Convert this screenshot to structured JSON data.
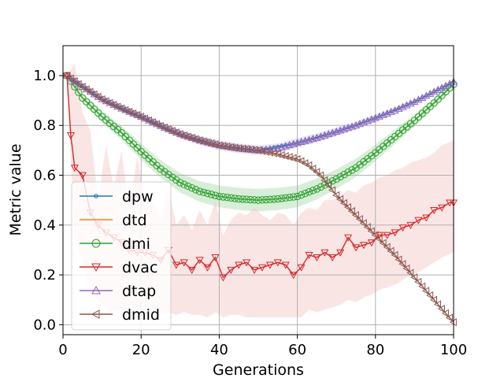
{
  "chart_data": {
    "type": "line",
    "title": "",
    "xlabel": "Generations",
    "ylabel": "Metric value",
    "xlim": [
      0,
      100
    ],
    "ylim": [
      -0.04,
      1.12
    ],
    "xticks": [
      0,
      20,
      40,
      60,
      80,
      100
    ],
    "yticks": [
      0.0,
      0.2,
      0.4,
      0.6,
      0.8,
      1.0
    ],
    "xtick_labels": [
      "0",
      "20",
      "40",
      "60",
      "80",
      "100"
    ],
    "ytick_labels": [
      "0.0",
      "0.2",
      "0.4",
      "0.6",
      "0.8",
      "1.0"
    ],
    "grid": true,
    "legend_position": "lower-left",
    "series": [
      {
        "name": "dpw",
        "color": "#1f77b4",
        "marker": "dot",
        "points": [
          [
            1,
            1.0
          ],
          [
            10,
            0.905
          ],
          [
            20,
            0.835
          ],
          [
            30,
            0.765
          ],
          [
            40,
            0.72
          ],
          [
            50,
            0.7
          ],
          [
            60,
            0.73
          ],
          [
            70,
            0.775
          ],
          [
            80,
            0.83
          ],
          [
            90,
            0.895
          ],
          [
            100,
            0.975
          ]
        ]
      },
      {
        "name": "dtd",
        "color": "#ff7f0e",
        "marker": "none",
        "points": [
          [
            1,
            1.0
          ],
          [
            10,
            0.905
          ],
          [
            20,
            0.835
          ],
          [
            30,
            0.765
          ],
          [
            40,
            0.72
          ],
          [
            50,
            0.7
          ],
          [
            60,
            0.73
          ],
          [
            70,
            0.775
          ],
          [
            80,
            0.83
          ],
          [
            90,
            0.895
          ],
          [
            100,
            0.975
          ]
        ]
      },
      {
        "name": "dmi",
        "color": "#2ca02c",
        "marker": "circle",
        "band": [
          0.03,
          0.015
        ],
        "points": [
          [
            1,
            1.0
          ],
          [
            5,
            0.91
          ],
          [
            10,
            0.835
          ],
          [
            15,
            0.77
          ],
          [
            20,
            0.695
          ],
          [
            25,
            0.625
          ],
          [
            30,
            0.57
          ],
          [
            35,
            0.535
          ],
          [
            40,
            0.515
          ],
          [
            45,
            0.505
          ],
          [
            50,
            0.5
          ],
          [
            55,
            0.505
          ],
          [
            60,
            0.515
          ],
          [
            65,
            0.545
          ],
          [
            70,
            0.585
          ],
          [
            75,
            0.63
          ],
          [
            80,
            0.69
          ],
          [
            85,
            0.755
          ],
          [
            90,
            0.82
          ],
          [
            95,
            0.89
          ],
          [
            100,
            0.965
          ]
        ]
      },
      {
        "name": "dvac",
        "color": "#d62728",
        "marker": "triangle-down",
        "band_color": "#f4c6c6",
        "points": [
          [
            1,
            1.0
          ],
          [
            2,
            0.76
          ],
          [
            3,
            0.63
          ],
          [
            5,
            0.6
          ],
          [
            7,
            0.45
          ],
          [
            9,
            0.4
          ],
          [
            11,
            0.37
          ],
          [
            13,
            0.35
          ],
          [
            15,
            0.33
          ],
          [
            17,
            0.3
          ],
          [
            19,
            0.29
          ],
          [
            21,
            0.29
          ],
          [
            23,
            0.28
          ],
          [
            25,
            0.26
          ],
          [
            27,
            0.3
          ],
          [
            29,
            0.24
          ],
          [
            31,
            0.25
          ],
          [
            33,
            0.22
          ],
          [
            35,
            0.26
          ],
          [
            37,
            0.23
          ],
          [
            39,
            0.27
          ],
          [
            41,
            0.19
          ],
          [
            43,
            0.22
          ],
          [
            45,
            0.24
          ],
          [
            47,
            0.25
          ],
          [
            49,
            0.22
          ],
          [
            51,
            0.23
          ],
          [
            53,
            0.24
          ],
          [
            55,
            0.25
          ],
          [
            57,
            0.24
          ],
          [
            59,
            0.2
          ],
          [
            61,
            0.23
          ],
          [
            63,
            0.28
          ],
          [
            65,
            0.27
          ],
          [
            67,
            0.29
          ],
          [
            69,
            0.27
          ],
          [
            71,
            0.29
          ],
          [
            73,
            0.35
          ],
          [
            75,
            0.31
          ],
          [
            77,
            0.32
          ],
          [
            79,
            0.33
          ],
          [
            81,
            0.36
          ],
          [
            83,
            0.36
          ],
          [
            85,
            0.37
          ],
          [
            87,
            0.39
          ],
          [
            89,
            0.4
          ],
          [
            91,
            0.42
          ],
          [
            93,
            0.43
          ],
          [
            95,
            0.46
          ],
          [
            97,
            0.47
          ],
          [
            99,
            0.49
          ],
          [
            100,
            0.49
          ]
        ],
        "band_upper": [
          [
            1,
            1.0
          ],
          [
            3,
            1.05
          ],
          [
            5,
            0.85
          ],
          [
            7,
            0.78
          ],
          [
            9,
            0.5
          ],
          [
            11,
            0.72
          ],
          [
            13,
            0.55
          ],
          [
            15,
            0.7
          ],
          [
            17,
            0.45
          ],
          [
            19,
            0.68
          ],
          [
            21,
            0.48
          ],
          [
            23,
            0.5
          ],
          [
            25,
            0.42
          ],
          [
            27,
            0.55
          ],
          [
            29,
            0.4
          ],
          [
            31,
            0.44
          ],
          [
            33,
            0.38
          ],
          [
            35,
            0.46
          ],
          [
            37,
            0.4
          ],
          [
            39,
            0.5
          ],
          [
            41,
            0.36
          ],
          [
            43,
            0.42
          ],
          [
            45,
            0.45
          ],
          [
            47,
            0.44
          ],
          [
            49,
            0.47
          ],
          [
            51,
            0.44
          ],
          [
            53,
            0.42
          ],
          [
            55,
            0.45
          ],
          [
            57,
            0.44
          ],
          [
            59,
            0.4
          ],
          [
            61,
            0.45
          ],
          [
            63,
            0.47
          ],
          [
            65,
            0.46
          ],
          [
            67,
            0.5
          ],
          [
            69,
            0.5
          ],
          [
            71,
            0.52
          ],
          [
            73,
            0.54
          ],
          [
            75,
            0.53
          ],
          [
            77,
            0.56
          ],
          [
            79,
            0.57
          ],
          [
            81,
            0.59
          ],
          [
            83,
            0.6
          ],
          [
            85,
            0.62
          ],
          [
            87,
            0.63
          ],
          [
            89,
            0.65
          ],
          [
            91,
            0.66
          ],
          [
            93,
            0.67
          ],
          [
            95,
            0.69
          ],
          [
            97,
            0.72
          ],
          [
            100,
            0.74
          ]
        ],
        "band_lower": [
          [
            1,
            1.0
          ],
          [
            3,
            0.35
          ],
          [
            5,
            0.25
          ],
          [
            7,
            0.15
          ],
          [
            9,
            0.1
          ],
          [
            11,
            0.06
          ],
          [
            13,
            0.05
          ],
          [
            15,
            0.06
          ],
          [
            17,
            0.05
          ],
          [
            19,
            0.04
          ],
          [
            21,
            0.05
          ],
          [
            23,
            0.04
          ],
          [
            25,
            0.04
          ],
          [
            27,
            0.05
          ],
          [
            29,
            0.04
          ],
          [
            31,
            0.05
          ],
          [
            33,
            0.04
          ],
          [
            35,
            0.04
          ],
          [
            37,
            0.03
          ],
          [
            39,
            0.05
          ],
          [
            41,
            0.03
          ],
          [
            43,
            0.04
          ],
          [
            45,
            0.04
          ],
          [
            47,
            0.03
          ],
          [
            49,
            0.03
          ],
          [
            51,
            0.03
          ],
          [
            53,
            0.03
          ],
          [
            55,
            0.03
          ],
          [
            57,
            0.03
          ],
          [
            59,
            0.03
          ],
          [
            61,
            0.03
          ],
          [
            63,
            0.06
          ],
          [
            65,
            0.05
          ],
          [
            67,
            0.06
          ],
          [
            69,
            0.07
          ],
          [
            71,
            0.08
          ],
          [
            73,
            0.1
          ],
          [
            75,
            0.09
          ],
          [
            77,
            0.11
          ],
          [
            79,
            0.12
          ],
          [
            81,
            0.14
          ],
          [
            83,
            0.15
          ],
          [
            85,
            0.16
          ],
          [
            87,
            0.18
          ],
          [
            89,
            0.2
          ],
          [
            91,
            0.21
          ],
          [
            93,
            0.23
          ],
          [
            95,
            0.25
          ],
          [
            97,
            0.27
          ],
          [
            100,
            0.29
          ]
        ]
      },
      {
        "name": "dtap",
        "color": "#9467bd",
        "marker": "triangle-up",
        "band": [
          0.015,
          0.005
        ],
        "points": [
          [
            1,
            1.0
          ],
          [
            5,
            0.955
          ],
          [
            10,
            0.905
          ],
          [
            15,
            0.868
          ],
          [
            20,
            0.835
          ],
          [
            25,
            0.798
          ],
          [
            30,
            0.765
          ],
          [
            35,
            0.74
          ],
          [
            40,
            0.72
          ],
          [
            45,
            0.708
          ],
          [
            50,
            0.7
          ],
          [
            55,
            0.708
          ],
          [
            60,
            0.73
          ],
          [
            65,
            0.75
          ],
          [
            70,
            0.775
          ],
          [
            75,
            0.8
          ],
          [
            80,
            0.83
          ],
          [
            85,
            0.86
          ],
          [
            90,
            0.895
          ],
          [
            95,
            0.935
          ],
          [
            100,
            0.975
          ]
        ]
      },
      {
        "name": "dmid",
        "color": "#8c564b",
        "marker": "triangle-left",
        "points": [
          [
            1,
            1.0
          ],
          [
            5,
            0.955
          ],
          [
            10,
            0.905
          ],
          [
            15,
            0.868
          ],
          [
            20,
            0.835
          ],
          [
            25,
            0.798
          ],
          [
            30,
            0.765
          ],
          [
            35,
            0.74
          ],
          [
            40,
            0.72
          ],
          [
            45,
            0.708
          ],
          [
            50,
            0.7
          ],
          [
            55,
            0.685
          ],
          [
            60,
            0.665
          ],
          [
            63,
            0.64
          ],
          [
            66,
            0.6
          ],
          [
            70,
            0.52
          ],
          [
            75,
            0.44
          ],
          [
            80,
            0.36
          ],
          [
            85,
            0.28
          ],
          [
            90,
            0.19
          ],
          [
            95,
            0.1
          ],
          [
            100,
            0.01
          ]
        ]
      }
    ]
  }
}
